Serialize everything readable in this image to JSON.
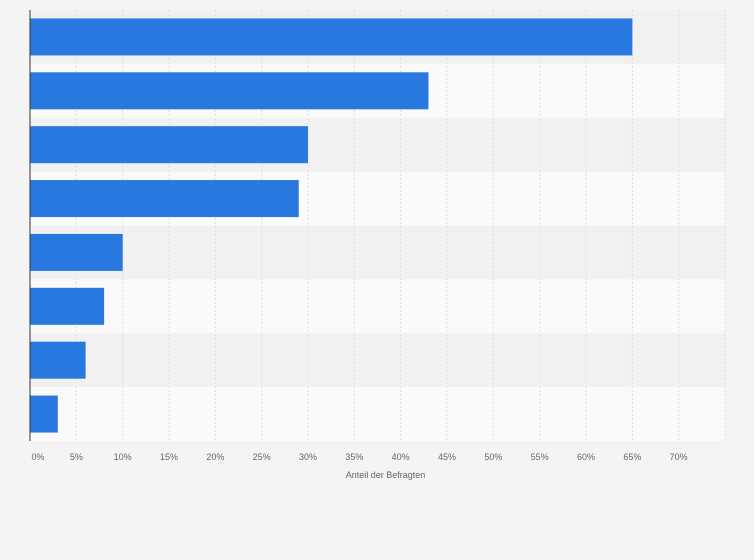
{
  "chart_data": {
    "type": "bar",
    "orientation": "horizontal",
    "categories": [
      "",
      "",
      "",
      "",
      "",
      "",
      "",
      ""
    ],
    "values": [
      65,
      43,
      30,
      29,
      10,
      8,
      6,
      3
    ],
    "xlabel": "Anteil der Befragten",
    "ylabel": "",
    "xlim": [
      0,
      75
    ],
    "x_ticks": [
      0,
      5,
      10,
      15,
      20,
      25,
      30,
      35,
      40,
      45,
      50,
      55,
      60,
      65,
      70
    ],
    "x_tick_labels": [
      "0%",
      "5%",
      "10%",
      "15%",
      "20%",
      "25%",
      "30%",
      "35%",
      "40%",
      "45%",
      "50%",
      "55%",
      "60%",
      "65%",
      "70%"
    ],
    "grid": true,
    "legend": "none",
    "colors": {
      "bar": "#2878e0",
      "band_dark": "#f1f1f1",
      "band_light": "#fafafa",
      "grid": "#dedede",
      "axis": "#333333",
      "text": "#666666"
    }
  }
}
